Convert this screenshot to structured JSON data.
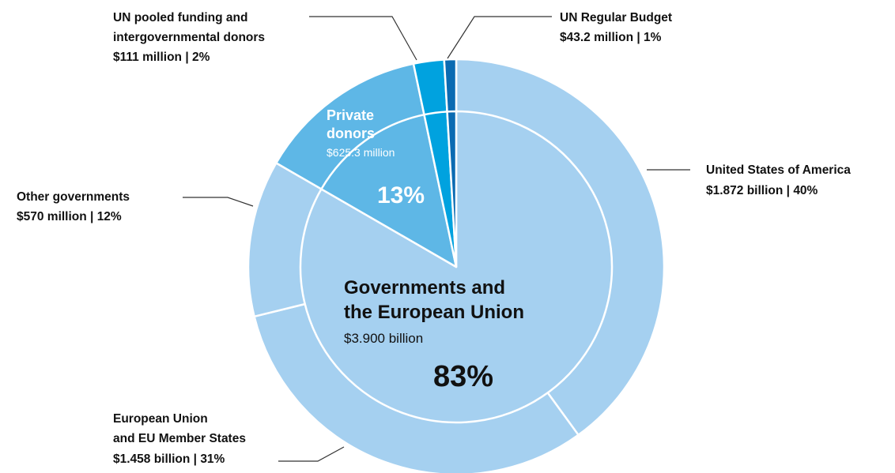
{
  "chart_data": {
    "type": "pie",
    "variant": "nested-donut",
    "title": "",
    "inner_ring": [
      {
        "name": "Governments and the European Union",
        "amount": "$3.900 billion",
        "percent": "83%",
        "value": 3900,
        "color": "#a5d0f0"
      },
      {
        "name": "Private donors",
        "amount": "$625.3 million",
        "percent": "13%",
        "value": 625.3,
        "color": "#5eb7e6"
      },
      {
        "name": "UN pooled funding and intergovernmental donors",
        "amount": "$111 million",
        "percent": "2%",
        "value": 111,
        "color": "#00a2df"
      },
      {
        "name": "UN Regular Budget",
        "amount": "$43.2 million",
        "percent": "1%",
        "value": 43.2,
        "color": "#0b6bb2"
      }
    ],
    "outer_ring": [
      {
        "name": "United States of America",
        "amount": "$1.872 billion",
        "percent": "40%",
        "value": 1872,
        "color": "#a5d0f0"
      },
      {
        "name": "European Union and EU Member States",
        "amount": "$1.458 billion",
        "percent": "31%",
        "value": 1458,
        "color": "#a5d0f0"
      },
      {
        "name": "Other governments",
        "amount": "$570 million",
        "percent": "12%",
        "value": 570,
        "color": "#a5d0f0"
      },
      {
        "name": "Private donors",
        "amount": "$625.3 million",
        "percent": "13%",
        "value": 625.3,
        "color": "#5eb7e6"
      },
      {
        "name": "UN pooled funding and intergovernmental donors",
        "amount": "$111 million",
        "percent": "2%",
        "value": 111,
        "color": "#00a2df"
      },
      {
        "name": "UN Regular Budget",
        "amount": "$43.2 million",
        "percent": "1%",
        "value": 43.2,
        "color": "#0b6bb2"
      }
    ],
    "labels": {
      "govt_line1": "Governments and",
      "govt_line2": "the European Union",
      "govt_amount": "$3.900 billion",
      "govt_pct": "83%",
      "private_line1": "Private",
      "private_line2": "donors",
      "private_amount": "$625.3 million",
      "private_pct": "13%",
      "pooled_line1": "UN pooled funding and",
      "pooled_line2": "intergovernmental donors",
      "pooled_amount": "$111 million",
      "pooled_pct": "| 2%",
      "regular_line1": "UN Regular Budget",
      "regular_amount": "$43.2 million",
      "regular_pct": "| 1%",
      "usa_line1": "United States of America",
      "usa_amount": "$1.872 billion",
      "usa_pct": "| 40%",
      "other_line1": "Other governments",
      "other_amount": "$570 million",
      "other_pct": "| 12%",
      "eu_line1": "European Union",
      "eu_line2": "and EU Member States",
      "eu_amount": "$1.458 billion",
      "eu_pct": "| 31%"
    },
    "colors": {
      "separator": "#ffffff",
      "leader": "#333333",
      "label_on_dark": "#ffffff"
    }
  }
}
